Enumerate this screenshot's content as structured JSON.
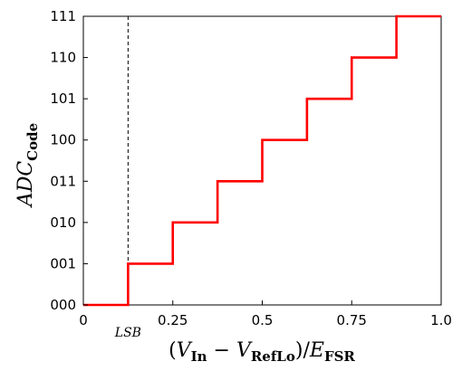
{
  "chart_data": {
    "type": "line",
    "step": "post",
    "title": "",
    "ylabel": {
      "main": "ADC",
      "sub": "Code"
    },
    "xlabel": {
      "open": "(",
      "v": "V",
      "in_sub": "In",
      "minus": " − ",
      "v2": "V",
      "ref_sub": "RefLo",
      "close": ")",
      "slash": "/",
      "e": "E",
      "fsr_sub": "FSR"
    },
    "xlim": [
      0,
      1.0
    ],
    "ylim": [
      0,
      7
    ],
    "x_ticks": [
      {
        "value": 0,
        "label": "0"
      },
      {
        "value": 0.25,
        "label": "0.25"
      },
      {
        "value": 0.5,
        "label": "0.5"
      },
      {
        "value": 0.75,
        "label": "0.75"
      },
      {
        "value": 1.0,
        "label": "1.0"
      }
    ],
    "y_ticks": [
      {
        "value": 0,
        "label": "000"
      },
      {
        "value": 1,
        "label": "001"
      },
      {
        "value": 2,
        "label": "010"
      },
      {
        "value": 3,
        "label": "011"
      },
      {
        "value": 4,
        "label": "100"
      },
      {
        "value": 5,
        "label": "101"
      },
      {
        "value": 6,
        "label": "110"
      },
      {
        "value": 7,
        "label": "111"
      }
    ],
    "series": [
      {
        "color": "#ff0000",
        "x": [
          0,
          0.125,
          0.25,
          0.375,
          0.5,
          0.625,
          0.75,
          0.875,
          1.0
        ],
        "y": [
          0,
          1,
          2,
          3,
          4,
          5,
          6,
          7,
          7
        ]
      }
    ],
    "annotations": [
      {
        "type": "vline",
        "x": 0.125,
        "style": "dashed",
        "label": "LSB",
        "color": "#000000"
      }
    ],
    "grid": false
  }
}
